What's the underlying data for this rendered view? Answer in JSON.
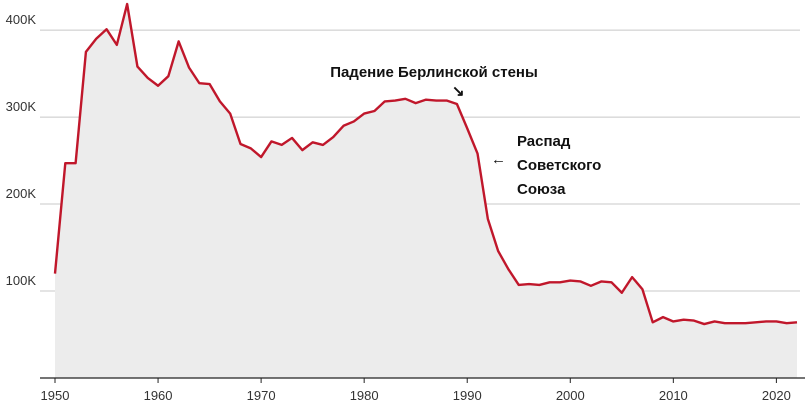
{
  "colors": {
    "line": "#c0172b",
    "area": "#ececec",
    "grid": "#c8c8c8",
    "axis": "#222222",
    "text": "#333333"
  },
  "chart_data": {
    "type": "area",
    "title": "",
    "xlabel": "",
    "ylabel": "",
    "xlim": [
      1950,
      2022
    ],
    "ylim": [
      0,
      430000
    ],
    "grid": "horizontal",
    "y_ticks": [
      100000,
      200000,
      300000,
      400000
    ],
    "y_tick_labels": [
      "100K",
      "200K",
      "300K",
      "400K"
    ],
    "x_ticks": [
      1950,
      1960,
      1970,
      1980,
      1990,
      2000,
      2010,
      2020
    ],
    "x_tick_labels": [
      "1950",
      "1960",
      "1970",
      "1980",
      "1990",
      "2000",
      "2010",
      "2020"
    ],
    "series": [
      {
        "x": [
          1950,
          1951,
          1952,
          1953,
          1954,
          1955,
          1956,
          1957,
          1958,
          1959,
          1960,
          1961,
          1962,
          1963,
          1964,
          1965,
          1966,
          1967,
          1968,
          1969,
          1970,
          1971,
          1972,
          1973,
          1974,
          1975,
          1976,
          1977,
          1978,
          1979,
          1980,
          1981,
          1982,
          1983,
          1984,
          1985,
          1986,
          1987,
          1988,
          1989,
          1990,
          1991,
          1992,
          1993,
          1994,
          1995,
          1996,
          1997,
          1998,
          1999,
          2000,
          2001,
          2002,
          2003,
          2004,
          2005,
          2006,
          2007,
          2008,
          2009,
          2010,
          2011,
          2012,
          2013,
          2014,
          2015,
          2016,
          2017,
          2018,
          2019,
          2020,
          2021,
          2022
        ],
        "values": [
          120000,
          247000,
          247000,
          375000,
          390000,
          401000,
          383000,
          430000,
          358000,
          345000,
          336000,
          347000,
          387000,
          357000,
          339000,
          338000,
          318000,
          304000,
          269000,
          264000,
          254000,
          272000,
          268000,
          276000,
          262000,
          271000,
          268000,
          277000,
          290000,
          295000,
          304000,
          307000,
          318000,
          319000,
          321000,
          316000,
          320000,
          319000,
          319000,
          315000,
          287000,
          258000,
          183000,
          146000,
          125000,
          107000,
          108000,
          107000,
          110000,
          110000,
          112000,
          111000,
          106000,
          111000,
          110000,
          98000,
          116000,
          102000,
          64000,
          70000,
          65000,
          67000,
          66000,
          62000,
          65000,
          63000,
          63000,
          63000,
          64000,
          65000,
          65000,
          63000,
          64000
        ]
      }
    ],
    "annotations": [
      {
        "lines": [
          "Падение Берлинской стены"
        ],
        "year": 1989,
        "arrow": "↘"
      },
      {
        "lines": [
          "Распад",
          "Советского",
          "Союза"
        ],
        "year": 1991,
        "arrow": "←"
      }
    ]
  }
}
